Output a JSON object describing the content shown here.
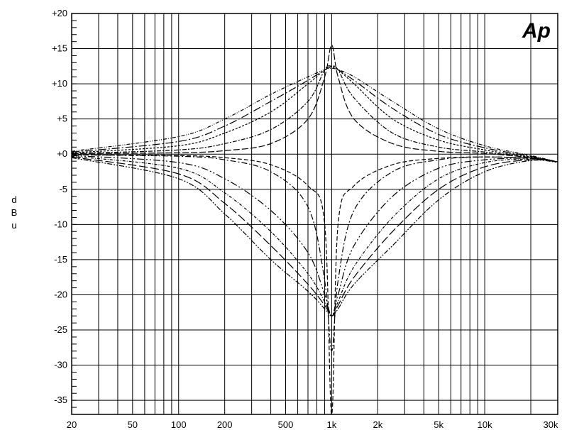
{
  "chart_data": {
    "type": "line",
    "title": "",
    "logo_text": "Ap",
    "xlabel": "",
    "ylabel": "dBu",
    "ylabel_chars": [
      "d",
      "B",
      "u"
    ],
    "x_scale": "log",
    "xlim": [
      20,
      30000
    ],
    "ylim": [
      -37,
      20
    ],
    "grid": true,
    "x_tick_labels": [
      {
        "value": 20,
        "label": "20"
      },
      {
        "value": 50,
        "label": "50"
      },
      {
        "value": 100,
        "label": "100"
      },
      {
        "value": 200,
        "label": "200"
      },
      {
        "value": 500,
        "label": "500"
      },
      {
        "value": 1000,
        "label": "1k"
      },
      {
        "value": 2000,
        "label": "2k"
      },
      {
        "value": 5000,
        "label": "5k"
      },
      {
        "value": 10000,
        "label": "10k"
      },
      {
        "value": 30000,
        "label": "30k"
      }
    ],
    "y_tick_labels": [
      {
        "value": 20,
        "label": "+20"
      },
      {
        "value": 15,
        "label": "+15"
      },
      {
        "value": 10,
        "label": "+10"
      },
      {
        "value": 5,
        "label": "+5"
      },
      {
        "value": 0,
        "label": "+0"
      },
      {
        "value": -5,
        "label": "-5"
      },
      {
        "value": -10,
        "label": "-10"
      },
      {
        "value": -15,
        "label": "-15"
      },
      {
        "value": -20,
        "label": "-20"
      },
      {
        "value": -25,
        "label": "-25"
      },
      {
        "value": -30,
        "label": "-30"
      },
      {
        "value": -35,
        "label": "-35"
      }
    ],
    "series": [
      {
        "values": [
          [
            20,
            -0.1
          ],
          [
            100,
            -0.2
          ],
          [
            200,
            -0.5
          ],
          [
            400,
            -1.5
          ],
          [
            700,
            -4.5
          ],
          [
            900,
            -10
          ],
          [
            1000,
            -37
          ],
          [
            1100,
            -10
          ],
          [
            1400,
            -4.5
          ],
          [
            2500,
            -1.5
          ],
          [
            5000,
            -0.6
          ],
          [
            10000,
            -0.4
          ],
          [
            20000,
            -0.6
          ],
          [
            30000,
            -1.1
          ]
        ]
      },
      {
        "values": [
          [
            20,
            -0.1
          ],
          [
            100,
            -0.3
          ],
          [
            200,
            -0.8
          ],
          [
            400,
            -2.5
          ],
          [
            700,
            -7.5
          ],
          [
            900,
            -18
          ],
          [
            1000,
            -28
          ],
          [
            1100,
            -18
          ],
          [
            1400,
            -8
          ],
          [
            2500,
            -2.5
          ],
          [
            5000,
            -0.8
          ],
          [
            10000,
            -0.4
          ],
          [
            20000,
            -0.6
          ],
          [
            30000,
            -1.1
          ]
        ]
      },
      {
        "values": [
          [
            20,
            -0.2
          ],
          [
            100,
            -1.2
          ],
          [
            200,
            -3.5
          ],
          [
            400,
            -8
          ],
          [
            700,
            -14
          ],
          [
            900,
            -20
          ],
          [
            1000,
            -23
          ],
          [
            1100,
            -20
          ],
          [
            1400,
            -13
          ],
          [
            2500,
            -6
          ],
          [
            5000,
            -2
          ],
          [
            10000,
            -0.8
          ],
          [
            20000,
            -0.6
          ],
          [
            30000,
            -1.1
          ]
        ]
      },
      {
        "values": [
          [
            20,
            -0.3
          ],
          [
            100,
            -2
          ],
          [
            200,
            -5.5
          ],
          [
            400,
            -11
          ],
          [
            700,
            -17
          ],
          [
            900,
            -21
          ],
          [
            1000,
            -23
          ],
          [
            1100,
            -21
          ],
          [
            1400,
            -16
          ],
          [
            2500,
            -9
          ],
          [
            5000,
            -3.5
          ],
          [
            10000,
            -1.2
          ],
          [
            20000,
            -0.7
          ],
          [
            30000,
            -1.1
          ]
        ]
      },
      {
        "values": [
          [
            20,
            -0.4
          ],
          [
            100,
            -2.8
          ],
          [
            200,
            -7
          ],
          [
            400,
            -13
          ],
          [
            700,
            -18.5
          ],
          [
            900,
            -21.5
          ],
          [
            1000,
            -23
          ],
          [
            1100,
            -21.5
          ],
          [
            1400,
            -17.5
          ],
          [
            2500,
            -11
          ],
          [
            5000,
            -5
          ],
          [
            10000,
            -1.8
          ],
          [
            20000,
            -0.8
          ],
          [
            30000,
            -1.1
          ]
        ]
      },
      {
        "values": [
          [
            20,
            -0.5
          ],
          [
            100,
            -3.5
          ],
          [
            200,
            -8.5
          ],
          [
            400,
            -15
          ],
          [
            700,
            -19.5
          ],
          [
            900,
            -22
          ],
          [
            1000,
            -23
          ],
          [
            1100,
            -22
          ],
          [
            1400,
            -18.5
          ],
          [
            2500,
            -13
          ],
          [
            5000,
            -6.5
          ],
          [
            10000,
            -2.5
          ],
          [
            20000,
            -0.9
          ],
          [
            30000,
            -1.2
          ]
        ]
      },
      {
        "values": [
          [
            20,
            0.1
          ],
          [
            100,
            0.2
          ],
          [
            200,
            0.5
          ],
          [
            400,
            1.5
          ],
          [
            700,
            5
          ],
          [
            900,
            11
          ],
          [
            1000,
            15.5
          ],
          [
            1100,
            11
          ],
          [
            1400,
            5
          ],
          [
            2500,
            1.5
          ],
          [
            5000,
            0.4
          ],
          [
            10000,
            0.1
          ],
          [
            20000,
            -0.5
          ],
          [
            30000,
            -1.1
          ]
        ]
      },
      {
        "values": [
          [
            20,
            0.1
          ],
          [
            100,
            0.6
          ],
          [
            200,
            1.5
          ],
          [
            400,
            3.5
          ],
          [
            700,
            7.5
          ],
          [
            900,
            12
          ],
          [
            1000,
            12.5
          ],
          [
            1100,
            12
          ],
          [
            1400,
            8
          ],
          [
            2500,
            3
          ],
          [
            5000,
            1
          ],
          [
            10000,
            0.3
          ],
          [
            20000,
            -0.5
          ],
          [
            30000,
            -1.1
          ]
        ]
      },
      {
        "values": [
          [
            20,
            0.2
          ],
          [
            100,
            1.2
          ],
          [
            200,
            3
          ],
          [
            400,
            6
          ],
          [
            700,
            10
          ],
          [
            900,
            12
          ],
          [
            1000,
            12.5
          ],
          [
            1100,
            12
          ],
          [
            1400,
            10
          ],
          [
            2500,
            5
          ],
          [
            5000,
            2
          ],
          [
            10000,
            0.6
          ],
          [
            20000,
            -0.4
          ],
          [
            30000,
            -1.1
          ]
        ]
      },
      {
        "values": [
          [
            20,
            0.3
          ],
          [
            100,
            1.8
          ],
          [
            200,
            4
          ],
          [
            400,
            7.5
          ],
          [
            700,
            10.5
          ],
          [
            900,
            12
          ],
          [
            1000,
            12.3
          ],
          [
            1100,
            12
          ],
          [
            1400,
            10.5
          ],
          [
            2500,
            6.5
          ],
          [
            5000,
            2.8
          ],
          [
            10000,
            0.9
          ],
          [
            20000,
            -0.3
          ],
          [
            30000,
            -1.1
          ]
        ]
      },
      {
        "values": [
          [
            20,
            0.4
          ],
          [
            100,
            2.5
          ],
          [
            200,
            5
          ],
          [
            400,
            8.5
          ],
          [
            700,
            11
          ],
          [
            900,
            12
          ],
          [
            1000,
            12.2
          ],
          [
            1100,
            12
          ],
          [
            1400,
            11
          ],
          [
            2500,
            7.5
          ],
          [
            5000,
            3.6
          ],
          [
            10000,
            1.2
          ],
          [
            20000,
            -0.2
          ],
          [
            30000,
            -1.1
          ]
        ]
      }
    ]
  }
}
